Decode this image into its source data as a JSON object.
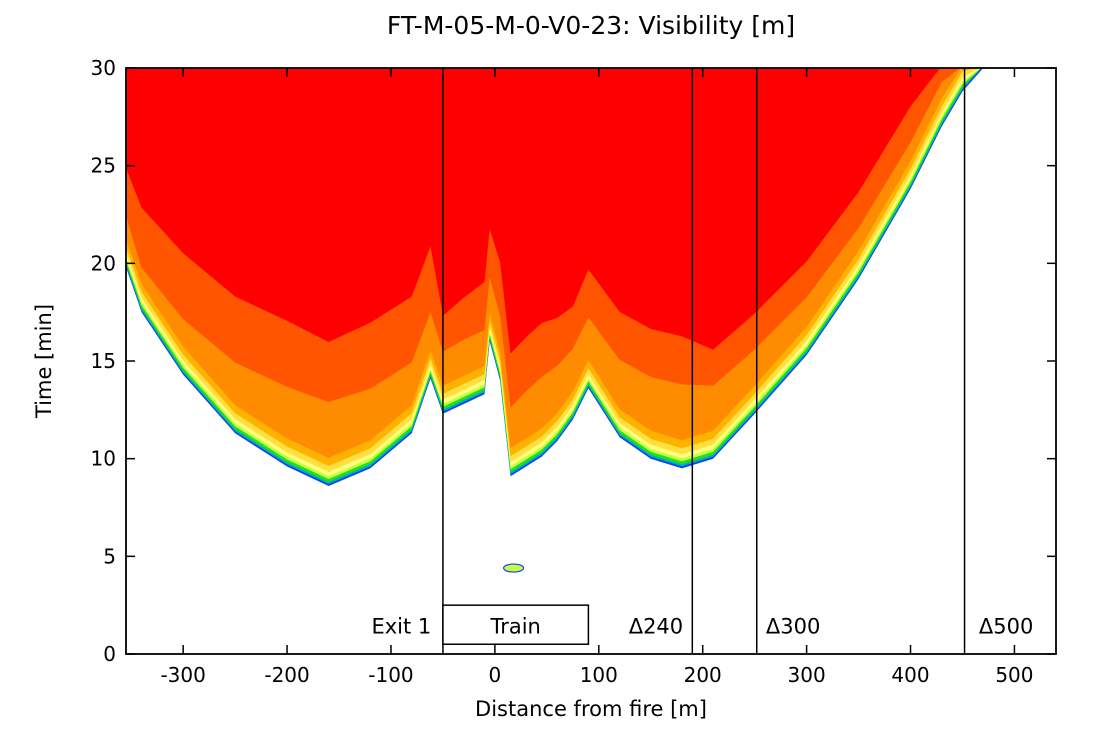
{
  "chart_data": {
    "type": "heatmap",
    "title": "FT-M-05-M-0-V0-23: Visibility [m]",
    "xlabel": "Distance from fire [m]",
    "ylabel": "Time [min]",
    "xlim": [
      -355,
      540
    ],
    "ylim": [
      0,
      30
    ],
    "xticks": [
      -300,
      -200,
      -100,
      0,
      100,
      200,
      300,
      400,
      500
    ],
    "yticks": [
      0,
      5,
      10,
      15,
      20,
      25,
      30
    ],
    "grid": false,
    "colors": [
      "#ff0000",
      "#ff5500",
      "#ff8c00",
      "#ffb300",
      "#ffe040",
      "#ffff80",
      "#c8ff40",
      "#20e020",
      "#00b0b0",
      "#1040ff"
    ],
    "visibility_onset": {
      "x": [
        -355,
        -340,
        -300,
        -250,
        -200,
        -160,
        -120,
        -80,
        -62,
        -50,
        -30,
        -10,
        -5,
        5,
        15,
        30,
        45,
        60,
        75,
        90,
        120,
        150,
        180,
        210,
        250,
        300,
        350,
        400,
        430,
        450,
        470
      ],
      "t": [
        19.8,
        17.5,
        14.3,
        11.3,
        9.6,
        8.6,
        9.5,
        11.3,
        14.1,
        12.3,
        12.8,
        13.3,
        16.0,
        14.0,
        9.1,
        9.6,
        10.1,
        10.9,
        12.0,
        13.6,
        11.1,
        10.0,
        9.5,
        10.0,
        12.3,
        15.3,
        19.2,
        23.8,
        27.0,
        28.8,
        30.0
      ]
    },
    "boundaries": {
      "x": [
        -355,
        -340,
        -300,
        -250,
        -200,
        -160,
        -120,
        -80,
        -62,
        -50,
        -30,
        -10,
        -5,
        5,
        15,
        30,
        45,
        60,
        75,
        90,
        120,
        150,
        180,
        210,
        250,
        300,
        350,
        400,
        430,
        450,
        470
      ],
      "levels": [
        [
          3,
          5,
          6,
          6,
          6,
          5,
          6,
          6,
          6,
          1,
          2,
          3,
          3,
          4,
          4,
          4,
          4,
          3,
          2,
          3,
          3,
          3,
          3,
          1,
          1,
          1,
          1,
          1,
          1,
          1,
          0
        ],
        [
          0,
          0,
          0,
          0,
          0,
          0,
          0,
          0,
          0,
          0,
          0,
          0,
          0,
          0,
          0,
          0,
          0,
          0,
          0,
          0,
          0,
          0,
          0,
          0,
          0,
          0,
          0,
          0,
          0,
          0,
          0
        ],
        [
          5,
          2,
          7,
          14,
          18,
          20,
          18,
          14,
          12,
          10,
          11,
          11,
          11,
          11,
          13,
          16,
          18,
          16,
          14,
          14,
          17,
          19,
          20,
          15,
          11,
          8,
          5,
          3,
          2,
          1,
          0
        ]
      ]
    },
    "verticals": [
      -50,
      190,
      252,
      452
    ],
    "annotations": [
      {
        "text": "Exit 1",
        "x": -90,
        "t": 1.4
      },
      {
        "text": "Train",
        "x": 20,
        "t": 1.4
      },
      {
        "text": "Δ240",
        "x": 155,
        "t": 1.4
      },
      {
        "text": "Δ300",
        "x": 287,
        "t": 1.4
      },
      {
        "text": "Δ500",
        "x": 492,
        "t": 1.4
      }
    ],
    "train_box": {
      "x": [
        -50,
        90
      ],
      "t": [
        0.5,
        2.5
      ]
    }
  }
}
